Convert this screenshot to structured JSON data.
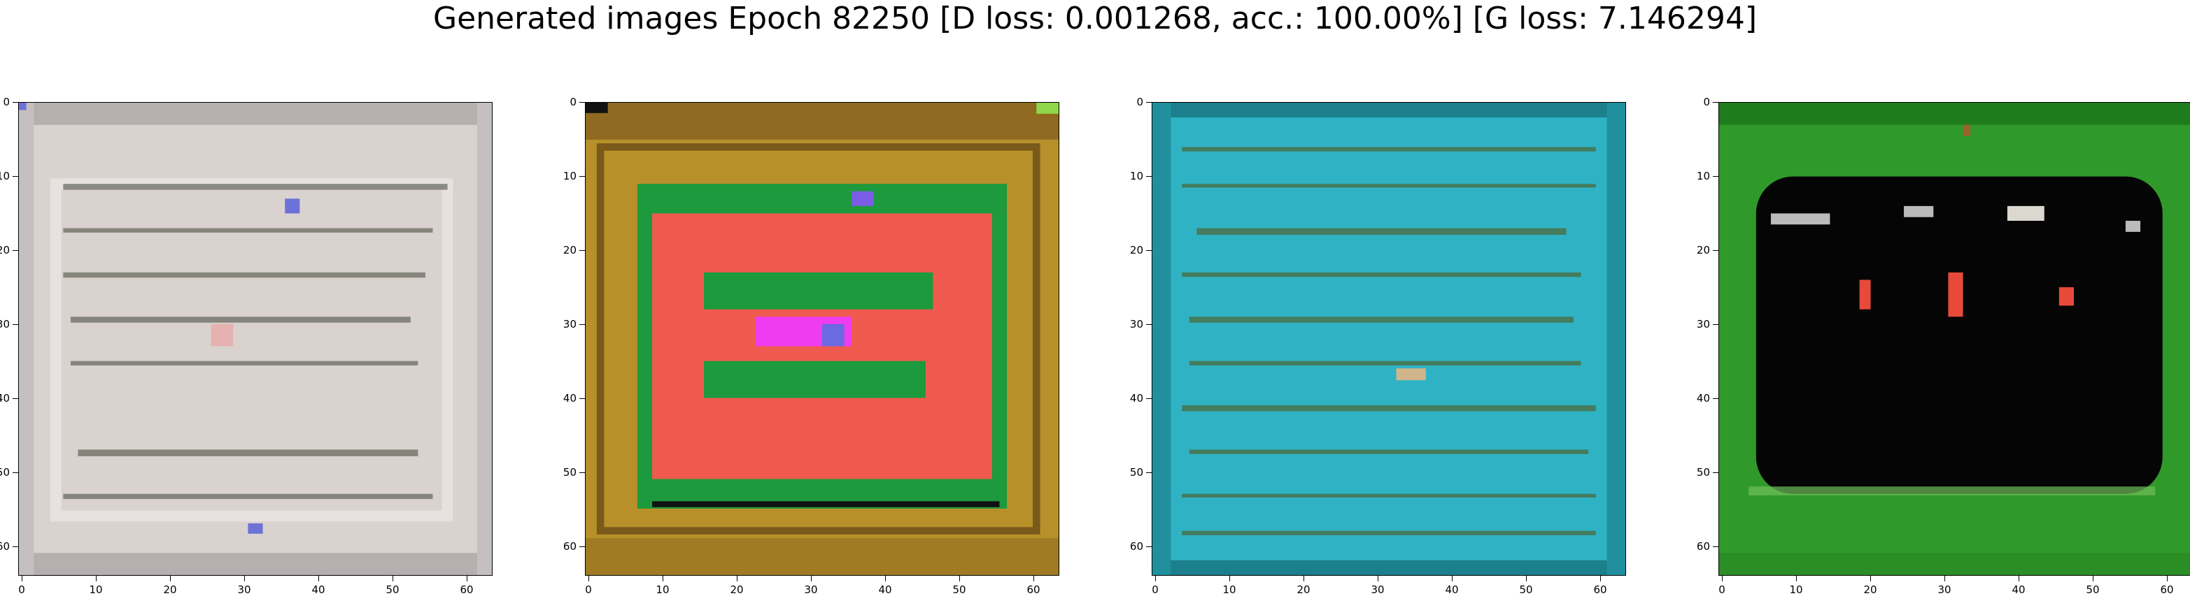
{
  "figure": {
    "title": "Generated images Epoch 82250 [D loss: 0.001268, acc.: 100.00%] [G loss: 7.146294]"
  },
  "axis": {
    "ticks": [
      "0",
      "10",
      "20",
      "30",
      "40",
      "50",
      "60"
    ]
  },
  "panels": [
    {
      "name": "generated-image-1",
      "colors": {
        "bg": "#d9d2cf",
        "frame": "#b7aeb0",
        "line": "#4e5245",
        "accent": "#6c72d8"
      }
    },
    {
      "name": "generated-image-2",
      "colors": {
        "bg": "#b8902a",
        "frame": "#8f6a20",
        "inner": "#f05a4e",
        "green": "#1c9a3d",
        "accent": "#ee3cf0"
      }
    },
    {
      "name": "generated-image-3",
      "colors": {
        "bg": "#2fb3c4",
        "frame": "#1c7f8c",
        "line": "#4c6a3d",
        "accent": "#d0b48a"
      }
    },
    {
      "name": "generated-image-4",
      "colors": {
        "bg": "#2f9a2a",
        "frame": "#1f7c1d",
        "inner": "#050505",
        "accent": "#e84a3a"
      }
    }
  ]
}
